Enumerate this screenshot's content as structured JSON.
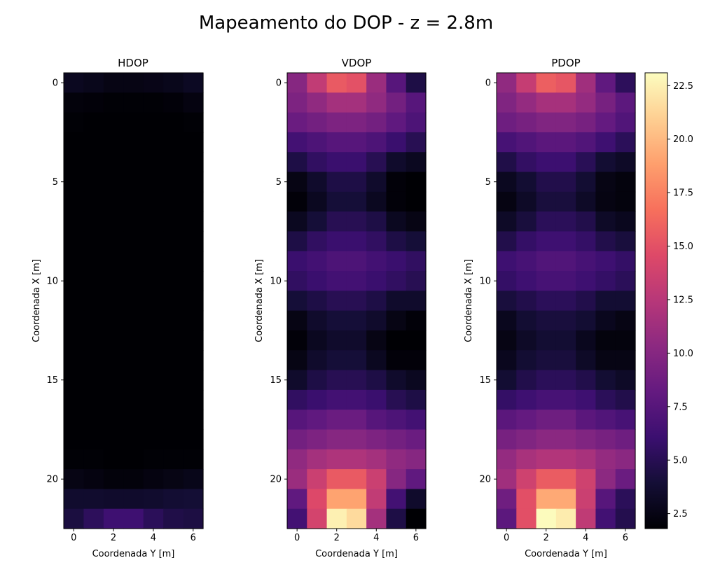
{
  "figure": {
    "title": "Mapeamento do DOP - z = 2.8m"
  },
  "chart_data": [
    {
      "type": "heatmap",
      "title": "HDOP",
      "xlabel": "Coordenada Y [m]",
      "ylabel": "Coordenada X [m]",
      "x": [
        0,
        1,
        2,
        3,
        4,
        5,
        6
      ],
      "y": [
        0,
        1,
        2,
        3,
        4,
        5,
        6,
        7,
        8,
        9,
        10,
        11,
        12,
        13,
        14,
        15,
        16,
        17,
        18,
        19,
        20,
        21,
        22
      ],
      "x_ticks": [
        0,
        2,
        4,
        6
      ],
      "y_ticks": [
        0,
        5,
        10,
        15,
        20
      ],
      "colormap": "magma",
      "color_range": [
        1.8,
        23.1
      ],
      "values": [
        [
          3.0,
          2.8,
          2.5,
          2.5,
          2.6,
          2.8,
          3.1
        ],
        [
          2.1,
          2.0,
          1.9,
          1.9,
          1.9,
          2.0,
          2.3
        ],
        [
          1.9,
          1.8,
          1.8,
          1.8,
          1.8,
          1.8,
          1.9
        ],
        [
          1.8,
          1.8,
          1.8,
          1.8,
          1.8,
          1.8,
          1.8
        ],
        [
          1.8,
          1.8,
          1.8,
          1.8,
          1.8,
          1.8,
          1.8
        ],
        [
          1.8,
          1.8,
          1.8,
          1.8,
          1.8,
          1.8,
          1.8
        ],
        [
          1.8,
          1.8,
          1.8,
          1.8,
          1.8,
          1.8,
          1.8
        ],
        [
          1.8,
          1.8,
          1.8,
          1.8,
          1.8,
          1.8,
          1.8
        ],
        [
          1.8,
          1.8,
          1.8,
          1.8,
          1.8,
          1.8,
          1.8
        ],
        [
          1.8,
          1.8,
          1.8,
          1.8,
          1.8,
          1.8,
          1.8
        ],
        [
          1.8,
          1.8,
          1.8,
          1.8,
          1.8,
          1.8,
          1.8
        ],
        [
          1.8,
          1.8,
          1.8,
          1.8,
          1.8,
          1.8,
          1.8
        ],
        [
          1.8,
          1.8,
          1.8,
          1.8,
          1.8,
          1.8,
          1.8
        ],
        [
          1.8,
          1.8,
          1.8,
          1.8,
          1.8,
          1.8,
          1.8
        ],
        [
          1.8,
          1.8,
          1.8,
          1.8,
          1.8,
          1.8,
          1.8
        ],
        [
          1.8,
          1.8,
          1.8,
          1.8,
          1.8,
          1.8,
          1.8
        ],
        [
          1.8,
          1.8,
          1.8,
          1.8,
          1.8,
          1.8,
          1.8
        ],
        [
          1.8,
          1.8,
          1.8,
          1.8,
          1.8,
          1.8,
          1.8
        ],
        [
          1.8,
          1.8,
          1.8,
          1.8,
          1.8,
          1.8,
          1.8
        ],
        [
          1.9,
          1.9,
          1.8,
          1.8,
          1.9,
          1.9,
          1.9
        ],
        [
          2.5,
          2.3,
          2.1,
          2.1,
          2.3,
          2.5,
          2.7
        ],
        [
          3.6,
          3.6,
          3.5,
          3.5,
          3.6,
          3.8,
          3.9
        ],
        [
          4.3,
          5.3,
          6.2,
          6.2,
          5.2,
          4.6,
          4.4
        ]
      ]
    },
    {
      "type": "heatmap",
      "title": "VDOP",
      "xlabel": "Coordenada Y [m]",
      "ylabel": "Coordenada X [m]",
      "x": [
        0,
        1,
        2,
        3,
        4,
        5,
        6
      ],
      "y": [
        0,
        1,
        2,
        3,
        4,
        5,
        6,
        7,
        8,
        9,
        10,
        11,
        12,
        13,
        14,
        15,
        16,
        17,
        18,
        19,
        20,
        21,
        22
      ],
      "x_ticks": [
        0,
        2,
        4,
        6
      ],
      "y_ticks": [
        0,
        5,
        10,
        15,
        20
      ],
      "colormap": "magma",
      "color_range": [
        1.8,
        23.1
      ],
      "values": [
        [
          10.0,
          13.0,
          15.5,
          15.0,
          11.0,
          7.5,
          4.5
        ],
        [
          9.5,
          10.5,
          11.5,
          11.5,
          10.5,
          9.0,
          7.5
        ],
        [
          8.5,
          9.0,
          9.5,
          9.5,
          9.0,
          8.0,
          7.0
        ],
        [
          6.5,
          7.0,
          7.5,
          7.5,
          7.0,
          6.0,
          5.0
        ],
        [
          4.5,
          5.5,
          6.0,
          6.0,
          5.0,
          3.5,
          3.0
        ],
        [
          2.5,
          3.5,
          4.5,
          4.5,
          3.5,
          2.0,
          1.8
        ],
        [
          2.0,
          3.0,
          4.0,
          4.0,
          3.0,
          2.0,
          1.8
        ],
        [
          3.0,
          4.0,
          5.0,
          5.0,
          4.5,
          3.0,
          2.5
        ],
        [
          4.5,
          5.5,
          6.0,
          6.0,
          5.5,
          4.5,
          4.0
        ],
        [
          6.0,
          6.5,
          7.0,
          7.0,
          6.5,
          6.0,
          5.5
        ],
        [
          5.5,
          6.0,
          6.5,
          6.5,
          6.0,
          5.5,
          5.0
        ],
        [
          4.0,
          4.5,
          5.0,
          5.0,
          4.5,
          3.5,
          3.5
        ],
        [
          2.5,
          3.5,
          4.0,
          4.0,
          3.5,
          2.5,
          2.0
        ],
        [
          2.0,
          3.0,
          3.5,
          3.5,
          2.5,
          1.8,
          1.8
        ],
        [
          2.5,
          3.5,
          4.0,
          4.0,
          3.0,
          2.0,
          2.0
        ],
        [
          3.5,
          4.5,
          5.0,
          5.0,
          4.5,
          3.5,
          3.0
        ],
        [
          5.5,
          6.0,
          6.5,
          6.5,
          6.0,
          5.0,
          4.5
        ],
        [
          7.5,
          8.0,
          8.5,
          8.5,
          7.5,
          7.0,
          6.5
        ],
        [
          9.0,
          9.5,
          10.0,
          10.0,
          9.5,
          9.0,
          8.5
        ],
        [
          10.5,
          11.5,
          12.0,
          12.0,
          11.5,
          10.5,
          10.0
        ],
        [
          11.0,
          13.5,
          15.5,
          15.5,
          13.5,
          10.0,
          8.0
        ],
        [
          8.0,
          14.5,
          19.0,
          19.0,
          13.0,
          6.5,
          3.5
        ],
        [
          6.5,
          14.0,
          22.5,
          21.5,
          11.5,
          4.5,
          1.8
        ]
      ]
    },
    {
      "type": "heatmap",
      "title": "PDOP",
      "xlabel": "Coordenada Y [m]",
      "ylabel": "Coordenada X [m]",
      "x": [
        0,
        1,
        2,
        3,
        4,
        5,
        6
      ],
      "y": [
        0,
        1,
        2,
        3,
        4,
        5,
        6,
        7,
        8,
        9,
        10,
        11,
        12,
        13,
        14,
        15,
        16,
        17,
        18,
        19,
        20,
        21,
        22
      ],
      "x_ticks": [
        0,
        2,
        4,
        6
      ],
      "y_ticks": [
        0,
        5,
        10,
        15,
        20
      ],
      "colormap": "magma",
      "color_range": [
        1.8,
        23.1
      ],
      "colorbar_ticks": [
        2.5,
        5.0,
        7.5,
        10.0,
        12.5,
        15.0,
        17.5,
        20.0,
        22.5
      ],
      "values": [
        [
          10.5,
          13.2,
          15.8,
          15.3,
          11.3,
          8.0,
          5.3
        ],
        [
          9.7,
          10.7,
          11.6,
          11.6,
          10.7,
          9.2,
          7.8
        ],
        [
          8.7,
          9.2,
          9.7,
          9.7,
          9.2,
          8.2,
          7.2
        ],
        [
          6.7,
          7.2,
          7.7,
          7.7,
          7.2,
          6.2,
          5.2
        ],
        [
          4.6,
          5.6,
          6.1,
          6.1,
          5.1,
          3.8,
          3.3
        ],
        [
          3.0,
          3.8,
          4.7,
          4.7,
          3.8,
          2.5,
          2.2
        ],
        [
          2.4,
          3.3,
          4.2,
          4.2,
          3.3,
          2.4,
          2.2
        ],
        [
          3.3,
          4.2,
          5.2,
          5.2,
          4.7,
          3.3,
          2.9
        ],
        [
          4.7,
          5.7,
          6.2,
          6.2,
          5.7,
          4.7,
          4.2
        ],
        [
          6.2,
          6.7,
          7.2,
          7.2,
          6.7,
          6.2,
          5.7
        ],
        [
          5.7,
          6.2,
          6.7,
          6.7,
          6.2,
          5.7,
          5.2
        ],
        [
          4.2,
          4.7,
          5.2,
          5.2,
          4.7,
          3.8,
          3.8
        ],
        [
          2.9,
          3.8,
          4.2,
          4.2,
          3.8,
          2.9,
          2.5
        ],
        [
          2.5,
          3.3,
          3.8,
          3.8,
          2.9,
          2.2,
          2.2
        ],
        [
          2.9,
          3.8,
          4.2,
          4.2,
          3.3,
          2.5,
          2.5
        ],
        [
          3.8,
          4.7,
          5.2,
          5.2,
          4.7,
          3.8,
          3.3
        ],
        [
          5.7,
          6.2,
          6.7,
          6.7,
          6.2,
          5.2,
          4.7
        ],
        [
          7.7,
          8.2,
          8.7,
          8.7,
          7.7,
          7.2,
          6.7
        ],
        [
          9.2,
          9.7,
          10.2,
          10.2,
          9.7,
          9.2,
          8.7
        ],
        [
          10.7,
          11.7,
          12.2,
          12.2,
          11.7,
          10.7,
          10.2
        ],
        [
          11.3,
          13.7,
          15.6,
          15.6,
          13.7,
          10.3,
          8.5
        ],
        [
          8.8,
          14.9,
          19.3,
          19.3,
          13.5,
          7.5,
          5.2
        ],
        [
          7.8,
          14.9,
          23.0,
          22.3,
          12.9,
          6.4,
          4.8
        ]
      ]
    }
  ]
}
